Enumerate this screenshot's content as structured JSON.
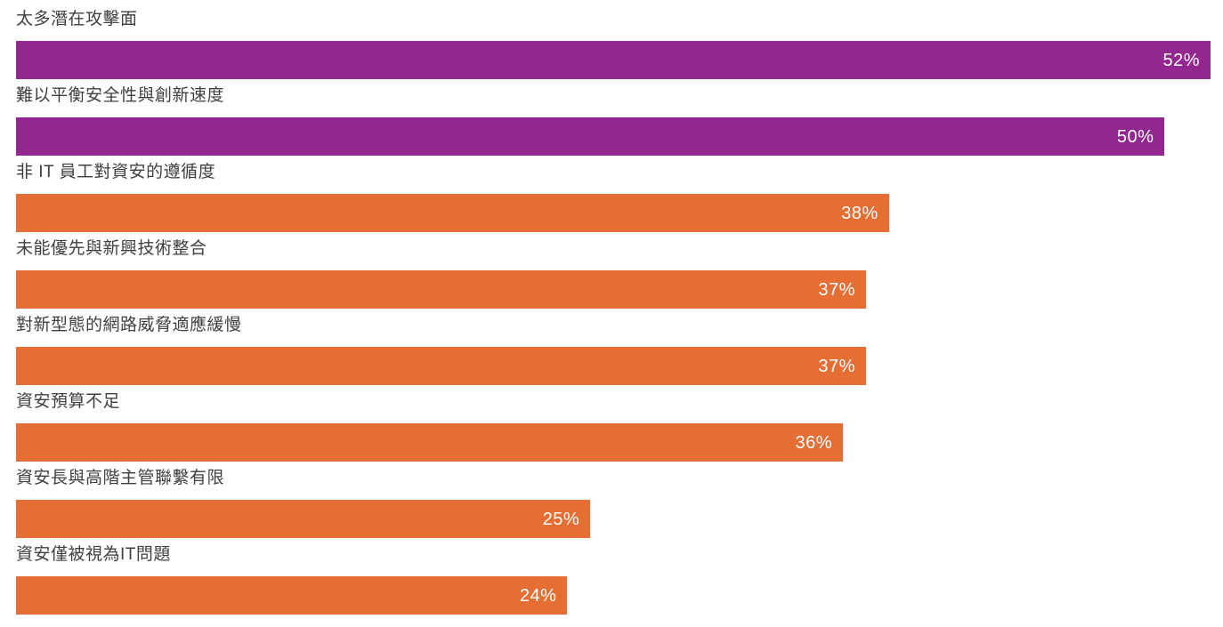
{
  "chart_data": {
    "type": "bar",
    "orientation": "horizontal",
    "title": "",
    "xlabel": "",
    "ylabel": "",
    "xlim": [
      0,
      52
    ],
    "grid": false,
    "legend": false,
    "categories": [
      "太多潛在攻擊面",
      "難以平衡安全性與創新速度",
      "非 IT 員工對資安的遵循度",
      "未能優先與新興技術整合",
      "對新型態的網路威脅適應緩慢",
      "資安預算不足",
      "資安長與高階主管聯繫有限",
      "資安僅被視為IT問題"
    ],
    "values": [
      52,
      50,
      38,
      37,
      37,
      36,
      25,
      24
    ],
    "items": [
      {
        "label": "太多潛在攻擊面",
        "value": 52,
        "value_label": "52%",
        "color": "#92278F"
      },
      {
        "label": "難以平衡安全性與創新速度",
        "value": 50,
        "value_label": "50%",
        "color": "#92278F"
      },
      {
        "label": "非 IT 員工對資安的遵循度",
        "value": 38,
        "value_label": "38%",
        "color": "#E56E34"
      },
      {
        "label": "未能優先與新興技術整合",
        "value": 37,
        "value_label": "37%",
        "color": "#E56E34"
      },
      {
        "label": "對新型態的網路威脅適應緩慢",
        "value": 37,
        "value_label": "37%",
        "color": "#E56E34"
      },
      {
        "label": "資安預算不足",
        "value": 36,
        "value_label": "36%",
        "color": "#E56E34"
      },
      {
        "label": "資安長與高階主管聯繫有限",
        "value": 25,
        "value_label": "25%",
        "color": "#E56E34"
      },
      {
        "label": "資安僅被視為IT問題",
        "value": 24,
        "value_label": "24%",
        "color": "#E56E34"
      }
    ]
  },
  "colors": {
    "bar_purple": "#92278F",
    "bar_orange": "#E56E34",
    "category_text": "#3F3F3F",
    "value_text": "#FFFFFF",
    "background": "#FFFFFF"
  }
}
